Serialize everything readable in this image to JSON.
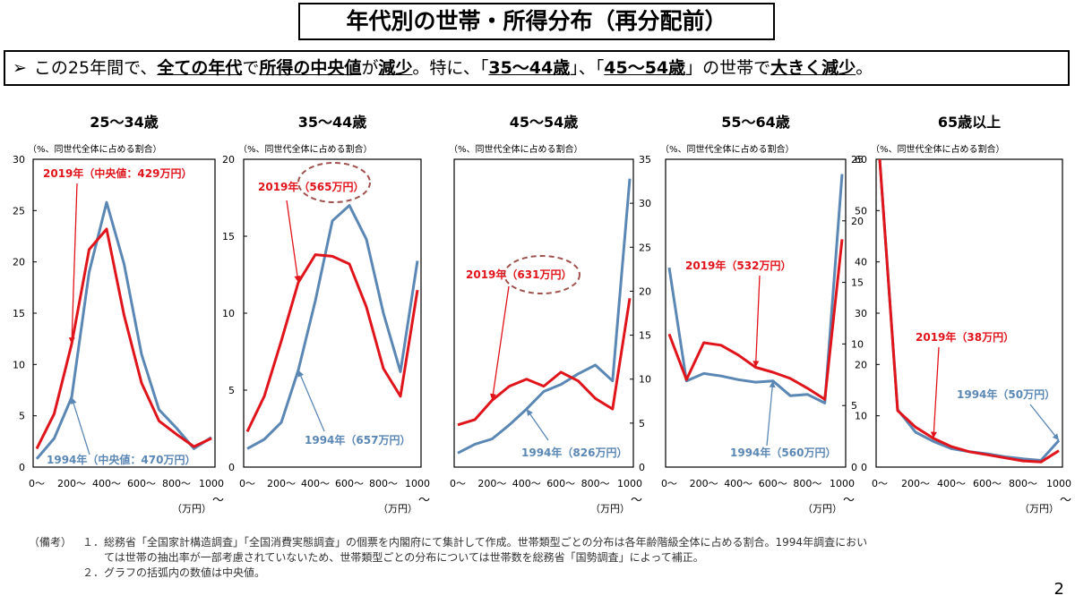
{
  "title": "年代別の世帯・所得分布（再分配前）",
  "subtitle": {
    "arrow": "➢",
    "p1": "この25年間で、",
    "u1": "全ての年代",
    "p2": "で",
    "u2": "所得の中央値",
    "p3": "が",
    "u3": "減少",
    "p4": "。特に、「",
    "u4": "35～44歳",
    "p5": "」、「",
    "u5": "45～54歳",
    "p6": "」の世帯で",
    "u6": "大きく減少",
    "p7": "。"
  },
  "y_unit_label": "（%、同世代全体に占める割合）",
  "x_unit_label": "（万円）",
  "x_unit_tilde": "～",
  "x_ticks": [
    "0～",
    "200～",
    "400～",
    "600～",
    "800～",
    "1000"
  ],
  "colors": {
    "y2019": "#e0141b",
    "y1994": "#5b87b4",
    "circle": "#a0524f"
  },
  "chart_data": [
    {
      "type": "line",
      "title": "25～34歳",
      "ylim": [
        0,
        30
      ],
      "yticks": [
        "0",
        "5",
        "10",
        "15",
        "20",
        "25",
        "30"
      ],
      "series": [
        {
          "name": "2019年",
          "values": [
            1.8,
            5.2,
            12.0,
            21.2,
            23.2,
            14.8,
            8.2,
            4.5,
            3.2,
            2.0,
            2.8
          ]
        },
        {
          "name": "1994年",
          "values": [
            0.8,
            2.8,
            6.8,
            19.0,
            25.8,
            19.8,
            11.0,
            5.6,
            3.8,
            1.8,
            2.9
          ]
        }
      ],
      "annotations": [
        "2019年（中央値：429万円）",
        "1994年（中央値：470万円）"
      ]
    },
    {
      "type": "line",
      "title": "35～44歳",
      "ylim": [
        0,
        20
      ],
      "yticks": [
        "0",
        "5",
        "10",
        "15",
        "20"
      ],
      "series": [
        {
          "name": "2019年",
          "values": [
            2.3,
            4.6,
            8.2,
            12.0,
            13.8,
            13.7,
            13.2,
            10.4,
            6.4,
            4.6,
            11.5
          ]
        },
        {
          "name": "1994年",
          "values": [
            1.2,
            1.8,
            2.9,
            6.3,
            10.8,
            16.0,
            17.0,
            14.8,
            10.0,
            6.2,
            13.4
          ]
        }
      ],
      "annotations": [
        "2019年（565万円）",
        "1994年（657万円）"
      ]
    },
    {
      "type": "line",
      "title": "45～54歳",
      "ylim": [
        0,
        35
      ],
      "yticks": [
        "0",
        "5",
        "10",
        "15",
        "20",
        "25",
        "30",
        "35"
      ],
      "series": [
        {
          "name": "2019年",
          "values": [
            4.8,
            5.4,
            7.6,
            9.2,
            10.0,
            9.2,
            10.8,
            9.8,
            7.8,
            6.6,
            19.2
          ]
        },
        {
          "name": "1994年",
          "values": [
            1.6,
            2.6,
            3.2,
            4.8,
            6.6,
            8.6,
            9.4,
            10.6,
            11.6,
            9.8,
            32.8
          ]
        }
      ],
      "annotations": [
        "2019年（631万円）",
        "1994年（826万円）"
      ]
    },
    {
      "type": "line",
      "title": "55～64歳",
      "ylim": [
        0,
        25
      ],
      "yticks": [
        "0",
        "5",
        "10",
        "15",
        "20",
        "25"
      ],
      "series": [
        {
          "name": "2019年",
          "values": [
            10.8,
            7.1,
            10.1,
            9.9,
            9.1,
            8.1,
            7.7,
            7.2,
            6.4,
            5.5,
            18.5
          ]
        },
        {
          "name": "1994年",
          "values": [
            16.2,
            7.0,
            7.6,
            7.4,
            7.1,
            6.9,
            7.0,
            5.8,
            5.9,
            5.2,
            23.8
          ]
        }
      ],
      "annotations": [
        "2019年（532万円）",
        "1994年（560万円）"
      ]
    },
    {
      "type": "line",
      "title": "65歳以上",
      "ylim": [
        0,
        60
      ],
      "yticks": [
        "0",
        "10",
        "20",
        "30",
        "40",
        "50",
        "60"
      ],
      "series": [
        {
          "name": "2019年",
          "values": [
            60.0,
            11.0,
            7.8,
            5.6,
            4.0,
            3.0,
            2.4,
            1.8,
            1.2,
            1.0,
            3.2
          ]
        },
        {
          "name": "1994年",
          "values": [
            60.0,
            11.2,
            6.8,
            5.0,
            3.6,
            3.0,
            2.6,
            2.0,
            1.6,
            1.3,
            5.2
          ]
        }
      ],
      "annotations": [
        "2019年（38万円）",
        "1994年（50万円）"
      ]
    }
  ],
  "notes": {
    "label": "（備考）",
    "n1": "１．",
    "t1a": "総務省「全国家計構造調査」「全国消費実態調査」の個票を内閣府にて集計して作成。世帯類型ごとの分布は各年齢階級全体に占める割合。1994年調査におい",
    "t1b": "ては世帯の抽出率が一部考慮されていないため、世帯類型ごとの分布については世帯数を総務省「国勢調査」によって補正。",
    "n2": "２．",
    "t2": "グラフの括弧内の数値は中央値。"
  },
  "page_number": "2"
}
